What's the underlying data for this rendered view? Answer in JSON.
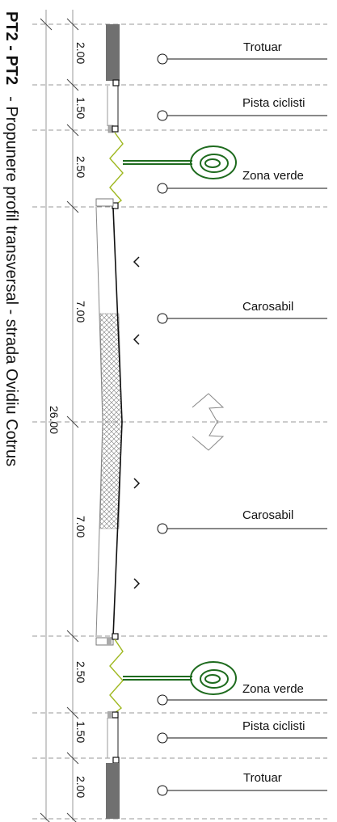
{
  "title": {
    "code": "PT2 - PT2",
    "text": "- Propunere profil transversal - strada Ovidiu Cotrus"
  },
  "dimensions": {
    "total": "26.00",
    "segments": [
      "2.00",
      "1.50",
      "2.50",
      "7.00",
      "7.00",
      "2.50",
      "1.50",
      "2.00"
    ]
  },
  "zone_labels": [
    "Trotuar",
    "Pista ciclisti",
    "Zona verde",
    "Carosabil",
    "Carosabil",
    "Zona verde",
    "Pista ciclisti",
    "Trotuar"
  ],
  "colors": {
    "line": "#222222",
    "dash": "#9a9a9a",
    "green_tree": "#1e6b1e",
    "green_curb": "#9fb820",
    "sidewalk": "#707070",
    "hatch": "#777777"
  }
}
